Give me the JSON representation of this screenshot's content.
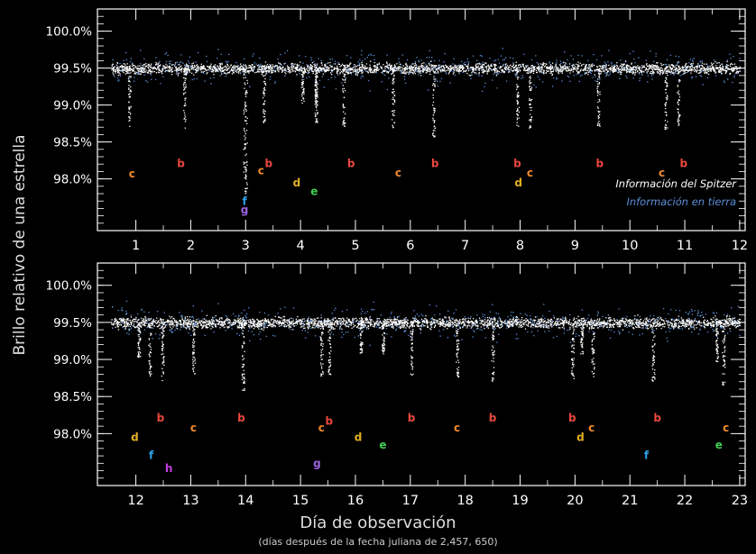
{
  "ylabel": "Brillo relativo de una estrella",
  "xlabel": "Día de observación",
  "xlabel_sub": "(días después de la fecha juliana de 2,457, 650)",
  "legend": {
    "spitzer": "Información del Spitzer",
    "ground": "Información en tierra"
  },
  "colors": {
    "background": "#000000",
    "spitzer": "#ffffff",
    "ground": "#5b8fd8",
    "b": "#e8483c",
    "c": "#ef8a2e",
    "d": "#e3b021",
    "e": "#3fcf55",
    "f": "#2f9fe8",
    "g": "#9b63e0",
    "h": "#c23ee0"
  },
  "chart_data": [
    {
      "type": "scatter",
      "panel": "top",
      "xlim": [
        0.3,
        12.1
      ],
      "ylim": [
        97.3,
        100.3
      ],
      "xticks": [
        "1",
        "2",
        "3",
        "4",
        "5",
        "6",
        "7",
        "8",
        "9",
        "10",
        "11",
        "12"
      ],
      "yticks": [
        "100.0%",
        "99.5%",
        "99.0%",
        "98.5%",
        "98.0%"
      ],
      "baseline": 99.5,
      "series": [
        {
          "name": "Información del Spitzer"
        },
        {
          "name": "Información en tierra"
        }
      ],
      "transits": [
        {
          "planet": "c",
          "x": 0.88,
          "depth": 98.75
        },
        {
          "planet": "b",
          "x": 1.88,
          "depth": 98.7
        },
        {
          "planet": "b",
          "x": 3.33,
          "depth": 98.8
        },
        {
          "planet": "c",
          "x": 4.28,
          "depth": 98.75
        },
        {
          "planet": "b",
          "x": 4.78,
          "depth": 98.75
        },
        {
          "planet": "c",
          "x": 5.68,
          "depth": 98.7
        },
        {
          "planet": "b",
          "x": 6.42,
          "depth": 98.6
        },
        {
          "planet": "b",
          "x": 7.95,
          "depth": 98.7
        },
        {
          "planet": "c",
          "x": 8.18,
          "depth": 98.7
        },
        {
          "planet": "b",
          "x": 9.42,
          "depth": 98.75
        },
        {
          "planet": "c",
          "x": 10.65,
          "depth": 98.7
        },
        {
          "planet": "b",
          "x": 10.88,
          "depth": 98.75
        },
        {
          "planet": "d",
          "x": 4.03,
          "depth": 99.05
        },
        {
          "planet": "e",
          "x": 4.28,
          "depth": 99.0
        },
        {
          "planet": "f",
          "x": 2.98,
          "depth": 97.85
        },
        {
          "planet": "g",
          "x": 3.0,
          "depth": 97.85
        }
      ],
      "labels": [
        {
          "letter": "c",
          "x": 0.93,
          "y": 98.02
        },
        {
          "letter": "b",
          "x": 1.82,
          "y": 98.16
        },
        {
          "letter": "c",
          "x": 3.28,
          "y": 98.06
        },
        {
          "letter": "b",
          "x": 3.42,
          "y": 98.16
        },
        {
          "letter": "d",
          "x": 3.93,
          "y": 97.9
        },
        {
          "letter": "e",
          "x": 4.25,
          "y": 97.78
        },
        {
          "letter": "b",
          "x": 4.92,
          "y": 98.16
        },
        {
          "letter": "c",
          "x": 5.78,
          "y": 98.03
        },
        {
          "letter": "b",
          "x": 6.45,
          "y": 98.16
        },
        {
          "letter": "b",
          "x": 7.95,
          "y": 98.16
        },
        {
          "letter": "d",
          "x": 7.97,
          "y": 97.9
        },
        {
          "letter": "c",
          "x": 8.18,
          "y": 98.03
        },
        {
          "letter": "b",
          "x": 9.45,
          "y": 98.16
        },
        {
          "letter": "c",
          "x": 10.58,
          "y": 98.03
        },
        {
          "letter": "b",
          "x": 10.98,
          "y": 98.16
        },
        {
          "letter": "f",
          "x": 2.98,
          "y": 97.65
        },
        {
          "letter": "g",
          "x": 2.98,
          "y": 97.53
        }
      ]
    },
    {
      "type": "scatter",
      "panel": "bottom",
      "xlim": [
        11.3,
        23.1
      ],
      "ylim": [
        97.3,
        100.3
      ],
      "xticks": [
        "12",
        "13",
        "14",
        "15",
        "16",
        "17",
        "18",
        "19",
        "20",
        "21",
        "22",
        "23"
      ],
      "yticks": [
        "100.0%",
        "99.5%",
        "99.0%",
        "98.5%",
        "98.0%"
      ],
      "baseline": 99.5,
      "series": [
        {
          "name": "Información del Spitzer"
        },
        {
          "name": "Información en tierra"
        }
      ],
      "transits": [
        {
          "planet": "d",
          "x": 12.05,
          "depth": 99.05
        },
        {
          "planet": "c",
          "x": 12.25,
          "depth": 98.8
        },
        {
          "planet": "b",
          "x": 12.48,
          "depth": 98.75
        },
        {
          "planet": "c",
          "x": 13.05,
          "depth": 98.8
        },
        {
          "planet": "b",
          "x": 13.95,
          "depth": 98.6
        },
        {
          "planet": "c",
          "x": 15.38,
          "depth": 98.8
        },
        {
          "planet": "b",
          "x": 15.52,
          "depth": 98.75
        },
        {
          "planet": "d",
          "x": 16.1,
          "depth": 99.1
        },
        {
          "planet": "e",
          "x": 16.5,
          "depth": 99.1
        },
        {
          "planet": "b",
          "x": 17.02,
          "depth": 98.8
        },
        {
          "planet": "c",
          "x": 17.85,
          "depth": 98.8
        },
        {
          "planet": "b",
          "x": 18.5,
          "depth": 98.75
        },
        {
          "planet": "b",
          "x": 19.95,
          "depth": 98.75
        },
        {
          "planet": "d",
          "x": 20.12,
          "depth": 99.1
        },
        {
          "planet": "c",
          "x": 20.32,
          "depth": 98.8
        },
        {
          "planet": "b",
          "x": 21.42,
          "depth": 98.75
        },
        {
          "planet": "c",
          "x": 22.7,
          "depth": 98.7
        },
        {
          "planet": "e",
          "x": 22.58,
          "depth": 99.0
        }
      ],
      "labels": [
        {
          "letter": "d",
          "x": 11.98,
          "y": 97.9
        },
        {
          "letter": "b",
          "x": 12.45,
          "y": 98.16
        },
        {
          "letter": "f",
          "x": 12.28,
          "y": 97.66
        },
        {
          "letter": "h",
          "x": 12.6,
          "y": 97.48
        },
        {
          "letter": "c",
          "x": 13.05,
          "y": 98.03
        },
        {
          "letter": "b",
          "x": 13.92,
          "y": 98.16
        },
        {
          "letter": "c",
          "x": 15.38,
          "y": 98.03
        },
        {
          "letter": "b",
          "x": 15.52,
          "y": 98.12
        },
        {
          "letter": "g",
          "x": 15.3,
          "y": 97.55
        },
        {
          "letter": "d",
          "x": 16.05,
          "y": 97.9
        },
        {
          "letter": "e",
          "x": 16.5,
          "y": 97.8
        },
        {
          "letter": "b",
          "x": 17.02,
          "y": 98.16
        },
        {
          "letter": "c",
          "x": 17.85,
          "y": 98.03
        },
        {
          "letter": "b",
          "x": 18.5,
          "y": 98.16
        },
        {
          "letter": "b",
          "x": 19.95,
          "y": 98.16
        },
        {
          "letter": "d",
          "x": 20.1,
          "y": 97.9
        },
        {
          "letter": "c",
          "x": 20.3,
          "y": 98.03
        },
        {
          "letter": "f",
          "x": 21.3,
          "y": 97.66
        },
        {
          "letter": "b",
          "x": 21.5,
          "y": 98.16
        },
        {
          "letter": "c",
          "x": 22.75,
          "y": 98.03
        },
        {
          "letter": "e",
          "x": 22.62,
          "y": 97.8
        }
      ]
    }
  ]
}
